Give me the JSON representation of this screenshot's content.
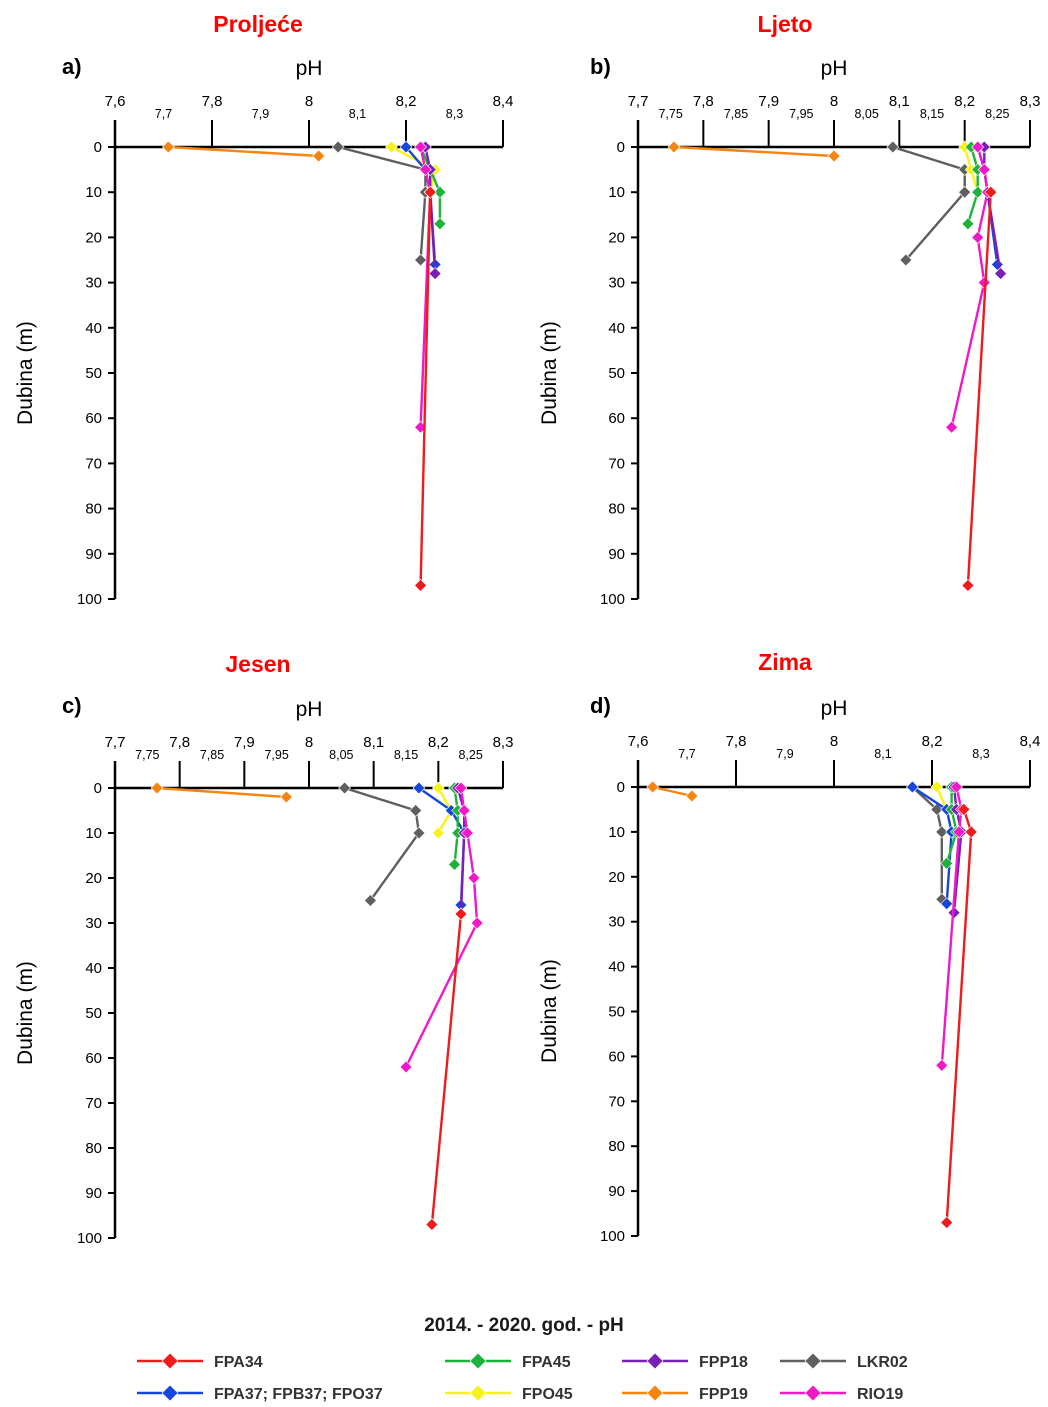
{
  "figure": {
    "legend_title": "2014. - 2020. god. - pH"
  },
  "legend": [
    {
      "name": "FPA34",
      "color": "#ee1c1c"
    },
    {
      "name": "FPA45",
      "color": "#1db33a"
    },
    {
      "name": "FPP18",
      "color": "#7a1fb5"
    },
    {
      "name": "LKR02",
      "color": "#5f5f5f"
    },
    {
      "name": "FPA37; FPB37; FPO37",
      "color": "#1646dc"
    },
    {
      "name": "FPO45",
      "color": "#f7f21a"
    },
    {
      "name": "FPP19",
      "color": "#f5850f"
    },
    {
      "name": "RIO19",
      "color": "#f019c8"
    }
  ],
  "chart_data": [
    {
      "type": "line",
      "panel": "a)",
      "title": "Proljeće",
      "title_color": "#ff0000",
      "xlabel": "pH",
      "ylabel": "Dubina (m)",
      "xlim": [
        7.6,
        8.4
      ],
      "ylim": [
        0,
        100
      ],
      "y_inverted": true,
      "x_tick_labels": [
        {
          "value": 7.6,
          "label": "7,6",
          "level": "major"
        },
        {
          "value": 7.7,
          "label": "7,7",
          "level": "minor"
        },
        {
          "value": 7.8,
          "label": "7,8",
          "level": "major"
        },
        {
          "value": 7.9,
          "label": "7,9",
          "level": "minor"
        },
        {
          "value": 8.0,
          "label": "8",
          "level": "major"
        },
        {
          "value": 8.1,
          "label": "8,1",
          "level": "minor"
        },
        {
          "value": 8.2,
          "label": "8,2",
          "level": "major"
        },
        {
          "value": 8.3,
          "label": "8,3",
          "level": "minor"
        },
        {
          "value": 8.4,
          "label": "8,4",
          "level": "major"
        }
      ],
      "y_ticks": [
        0,
        10,
        20,
        30,
        40,
        50,
        60,
        70,
        80,
        90,
        100
      ],
      "series": [
        {
          "name": "FPP19",
          "color": "#f5850f",
          "points": [
            [
              7.71,
              0
            ],
            [
              8.02,
              2
            ]
          ]
        },
        {
          "name": "LKR02",
          "color": "#5f5f5f",
          "points": [
            [
              8.06,
              0
            ],
            [
              8.24,
              5
            ],
            [
              8.24,
              10
            ],
            [
              8.23,
              25
            ]
          ]
        },
        {
          "name": "FPO45",
          "color": "#f7f21a",
          "points": [
            [
              8.17,
              0
            ],
            [
              8.26,
              5
            ],
            [
              8.25,
              10
            ]
          ]
        },
        {
          "name": "FPA37; FPB37; FPO37",
          "color": "#1646dc",
          "points": [
            [
              8.2,
              0
            ],
            [
              8.24,
              5
            ],
            [
              8.25,
              10
            ],
            [
              8.26,
              26
            ]
          ]
        },
        {
          "name": "FPA45",
          "color": "#1db33a",
          "points": [
            [
              8.23,
              0
            ],
            [
              8.25,
              5
            ],
            [
              8.27,
              10
            ],
            [
              8.27,
              17
            ]
          ]
        },
        {
          "name": "FPP18",
          "color": "#7a1fb5",
          "points": [
            [
              8.24,
              0
            ],
            [
              8.25,
              5
            ],
            [
              8.25,
              10
            ],
            [
              8.26,
              28
            ]
          ]
        },
        {
          "name": "RIO19",
          "color": "#f019c8",
          "points": [
            [
              8.23,
              0
            ],
            [
              8.24,
              5
            ],
            [
              8.25,
              10
            ],
            [
              8.23,
              62
            ]
          ]
        },
        {
          "name": "FPA34",
          "color": "#ee1c1c",
          "points": [
            [
              8.25,
              10
            ],
            [
              8.23,
              97
            ]
          ]
        }
      ]
    },
    {
      "type": "line",
      "panel": "b)",
      "title": "Ljeto",
      "title_color": "#ff0000",
      "xlabel": "pH",
      "ylabel": "Dubina (m)",
      "xlim": [
        7.7,
        8.3
      ],
      "ylim": [
        0,
        100
      ],
      "y_inverted": true,
      "x_tick_labels": [
        {
          "value": 7.7,
          "label": "7,7",
          "level": "major"
        },
        {
          "value": 7.75,
          "label": "7,75",
          "level": "minor"
        },
        {
          "value": 7.8,
          "label": "7,8",
          "level": "major"
        },
        {
          "value": 7.85,
          "label": "7,85",
          "level": "minor"
        },
        {
          "value": 7.9,
          "label": "7,9",
          "level": "major"
        },
        {
          "value": 7.95,
          "label": "7,95",
          "level": "minor"
        },
        {
          "value": 8.0,
          "label": "8",
          "level": "major"
        },
        {
          "value": 8.05,
          "label": "8,05",
          "level": "minor"
        },
        {
          "value": 8.1,
          "label": "8,1",
          "level": "major"
        },
        {
          "value": 8.15,
          "label": "8,15",
          "level": "minor"
        },
        {
          "value": 8.2,
          "label": "8,2",
          "level": "major"
        },
        {
          "value": 8.25,
          "label": "8,25",
          "level": "minor"
        },
        {
          "value": 8.3,
          "label": "8,3",
          "level": "major"
        }
      ],
      "y_ticks": [
        0,
        10,
        20,
        30,
        40,
        50,
        60,
        70,
        80,
        90,
        100
      ],
      "series": [
        {
          "name": "FPP19",
          "color": "#f5850f",
          "points": [
            [
              7.755,
              0
            ],
            [
              8.0,
              2
            ]
          ]
        },
        {
          "name": "LKR02",
          "color": "#5f5f5f",
          "points": [
            [
              8.09,
              0
            ],
            [
              8.2,
              5
            ],
            [
              8.2,
              10
            ],
            [
              8.11,
              25
            ]
          ]
        },
        {
          "name": "FPO45",
          "color": "#f7f21a",
          "points": [
            [
              8.2,
              0
            ],
            [
              8.21,
              5
            ],
            [
              8.22,
              10
            ]
          ]
        },
        {
          "name": "FPA45",
          "color": "#1db33a",
          "points": [
            [
              8.21,
              0
            ],
            [
              8.22,
              5
            ],
            [
              8.22,
              10
            ],
            [
              8.205,
              17
            ]
          ]
        },
        {
          "name": "FPA37; FPB37; FPO37",
          "color": "#1646dc",
          "points": [
            [
              8.22,
              0
            ],
            [
              8.23,
              5
            ],
            [
              8.235,
              10
            ],
            [
              8.25,
              26
            ]
          ]
        },
        {
          "name": "FPP18",
          "color": "#7a1fb5",
          "points": [
            [
              8.23,
              0
            ],
            [
              8.23,
              5
            ],
            [
              8.235,
              10
            ],
            [
              8.255,
              28
            ]
          ]
        },
        {
          "name": "RIO19",
          "color": "#f019c8",
          "points": [
            [
              8.22,
              0
            ],
            [
              8.23,
              5
            ],
            [
              8.235,
              10
            ],
            [
              8.22,
              20
            ],
            [
              8.23,
              30
            ],
            [
              8.18,
              62
            ]
          ]
        },
        {
          "name": "FPA34",
          "color": "#ee1c1c",
          "points": [
            [
              8.24,
              10
            ],
            [
              8.205,
              97
            ]
          ]
        }
      ]
    },
    {
      "type": "line",
      "panel": "c)",
      "title": "Jesen",
      "title_color": "#ff0000",
      "xlabel": "pH",
      "ylabel": "Dubina (m)",
      "xlim": [
        7.7,
        8.3
      ],
      "ylim": [
        0,
        100
      ],
      "y_inverted": true,
      "x_tick_labels": [
        {
          "value": 7.7,
          "label": "7,7",
          "level": "major"
        },
        {
          "value": 7.75,
          "label": "7,75",
          "level": "minor"
        },
        {
          "value": 7.8,
          "label": "7,8",
          "level": "major"
        },
        {
          "value": 7.85,
          "label": "7,85",
          "level": "minor"
        },
        {
          "value": 7.9,
          "label": "7,9",
          "level": "major"
        },
        {
          "value": 7.95,
          "label": "7,95",
          "level": "minor"
        },
        {
          "value": 8.0,
          "label": "8",
          "level": "major"
        },
        {
          "value": 8.05,
          "label": "8,05",
          "level": "minor"
        },
        {
          "value": 8.1,
          "label": "8,1",
          "level": "major"
        },
        {
          "value": 8.15,
          "label": "8,15",
          "level": "minor"
        },
        {
          "value": 8.2,
          "label": "8,2",
          "level": "major"
        },
        {
          "value": 8.25,
          "label": "8,25",
          "level": "minor"
        },
        {
          "value": 8.3,
          "label": "8,3",
          "level": "major"
        }
      ],
      "y_ticks": [
        0,
        10,
        20,
        30,
        40,
        50,
        60,
        70,
        80,
        90,
        100
      ],
      "series": [
        {
          "name": "FPP19",
          "color": "#f5850f",
          "points": [
            [
              7.765,
              0
            ],
            [
              7.965,
              2
            ]
          ]
        },
        {
          "name": "LKR02",
          "color": "#5f5f5f",
          "points": [
            [
              8.055,
              0
            ],
            [
              8.165,
              5
            ],
            [
              8.17,
              10
            ],
            [
              8.095,
              25
            ]
          ]
        },
        {
          "name": "FPO45",
          "color": "#f7f21a",
          "points": [
            [
              8.2,
              0
            ],
            [
              8.22,
              5
            ],
            [
              8.2,
              10
            ]
          ]
        },
        {
          "name": "FPA37; FPB37; FPO37",
          "color": "#1646dc",
          "points": [
            [
              8.17,
              0
            ],
            [
              8.22,
              5
            ],
            [
              8.24,
              10
            ],
            [
              8.235,
              26
            ]
          ]
        },
        {
          "name": "FPA45",
          "color": "#1db33a",
          "points": [
            [
              8.225,
              0
            ],
            [
              8.23,
              5
            ],
            [
              8.23,
              10
            ],
            [
              8.225,
              17
            ]
          ]
        },
        {
          "name": "FPP18",
          "color": "#7a1fb5",
          "points": [
            [
              8.23,
              0
            ],
            [
              8.24,
              5
            ],
            [
              8.24,
              10
            ],
            [
              8.235,
              28
            ]
          ]
        },
        {
          "name": "RIO19",
          "color": "#f019c8",
          "points": [
            [
              8.235,
              0
            ],
            [
              8.24,
              5
            ],
            [
              8.245,
              10
            ],
            [
              8.255,
              20
            ],
            [
              8.26,
              30
            ],
            [
              8.15,
              62
            ]
          ]
        },
        {
          "name": "FPA34",
          "color": "#ee1c1c",
          "points": [
            [
              8.235,
              28
            ],
            [
              8.19,
              97
            ]
          ]
        }
      ]
    },
    {
      "type": "line",
      "panel": "d)",
      "title": "Zima",
      "title_color": "#ff0000",
      "xlabel": "pH",
      "ylabel": "Dubina (m)",
      "xlim": [
        7.6,
        8.4
      ],
      "ylim": [
        0,
        100
      ],
      "y_inverted": true,
      "x_tick_labels": [
        {
          "value": 7.6,
          "label": "7,6",
          "level": "major"
        },
        {
          "value": 7.7,
          "label": "7,7",
          "level": "minor"
        },
        {
          "value": 7.8,
          "label": "7,8",
          "level": "major"
        },
        {
          "value": 7.9,
          "label": "7,9",
          "level": "minor"
        },
        {
          "value": 8.0,
          "label": "8",
          "level": "major"
        },
        {
          "value": 8.1,
          "label": "8,1",
          "level": "minor"
        },
        {
          "value": 8.2,
          "label": "8,2",
          "level": "major"
        },
        {
          "value": 8.3,
          "label": "8,3",
          "level": "minor"
        },
        {
          "value": 8.4,
          "label": "8,4",
          "level": "major"
        }
      ],
      "y_ticks": [
        0,
        10,
        20,
        30,
        40,
        50,
        60,
        70,
        80,
        90,
        100
      ],
      "series": [
        {
          "name": "FPP19",
          "color": "#f5850f",
          "points": [
            [
              7.63,
              0
            ],
            [
              7.71,
              2
            ]
          ]
        },
        {
          "name": "LKR02",
          "color": "#5f5f5f",
          "points": [
            [
              8.16,
              0
            ],
            [
              8.21,
              5
            ],
            [
              8.22,
              10
            ],
            [
              8.22,
              25
            ]
          ]
        },
        {
          "name": "FPO45",
          "color": "#f7f21a",
          "points": [
            [
              8.21,
              0
            ],
            [
              8.23,
              5
            ],
            [
              8.24,
              10
            ]
          ]
        },
        {
          "name": "FPA37; FPB37; FPO37",
          "color": "#1646dc",
          "points": [
            [
              8.16,
              0
            ],
            [
              8.23,
              5
            ],
            [
              8.24,
              10
            ],
            [
              8.23,
              26
            ]
          ]
        },
        {
          "name": "FPA45",
          "color": "#1db33a",
          "points": [
            [
              8.24,
              0
            ],
            [
              8.24,
              5
            ],
            [
              8.25,
              10
            ],
            [
              8.23,
              17
            ]
          ]
        },
        {
          "name": "FPP18",
          "color": "#7a1fb5",
          "points": [
            [
              8.245,
              0
            ],
            [
              8.25,
              5
            ],
            [
              8.26,
              10
            ],
            [
              8.245,
              28
            ]
          ]
        },
        {
          "name": "RIO19",
          "color": "#f019c8",
          "points": [
            [
              8.25,
              0
            ],
            [
              8.26,
              5
            ],
            [
              8.255,
              10
            ],
            [
              8.22,
              62
            ]
          ]
        },
        {
          "name": "FPA34",
          "color": "#ee1c1c",
          "points": [
            [
              8.265,
              5
            ],
            [
              8.28,
              10
            ],
            [
              8.23,
              97
            ]
          ]
        }
      ]
    }
  ]
}
